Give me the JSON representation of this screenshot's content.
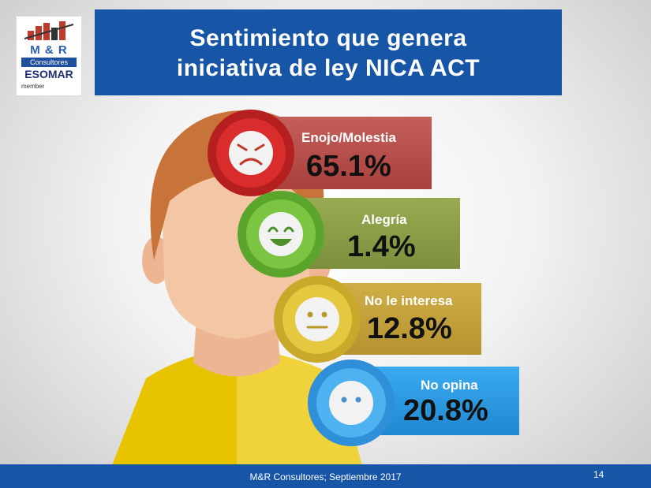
{
  "title": {
    "line1": "Sentimiento que genera",
    "line2": "iniciativa de ley NICA ACT"
  },
  "logo": {
    "brand": "M & R",
    "consultores": "Consultores",
    "esomar": "ESOMAR",
    "member": "member"
  },
  "colors": {
    "banner": "#1756a7",
    "enojo": "#c45550",
    "alegria": "#8fa24a",
    "no_interesa": "#c9a640",
    "no_opina": "#2f9fe2"
  },
  "chart_data": {
    "type": "table",
    "title": "Sentimiento que genera iniciativa de ley NICA ACT",
    "categories": [
      "Enojo/Molestia",
      "Alegría",
      "No le interesa",
      "No opina"
    ],
    "values": [
      65.1,
      1.4,
      12.8,
      20.8
    ],
    "labels": [
      "65.1%",
      "1.4%",
      "12.8%",
      "20.8%"
    ],
    "icons": [
      "angry-face-icon",
      "happy-face-icon",
      "neutral-face-icon",
      "blank-face-icon"
    ]
  },
  "footer": {
    "source": "M&R Consultores; Septiembre 2017",
    "page": "14"
  }
}
